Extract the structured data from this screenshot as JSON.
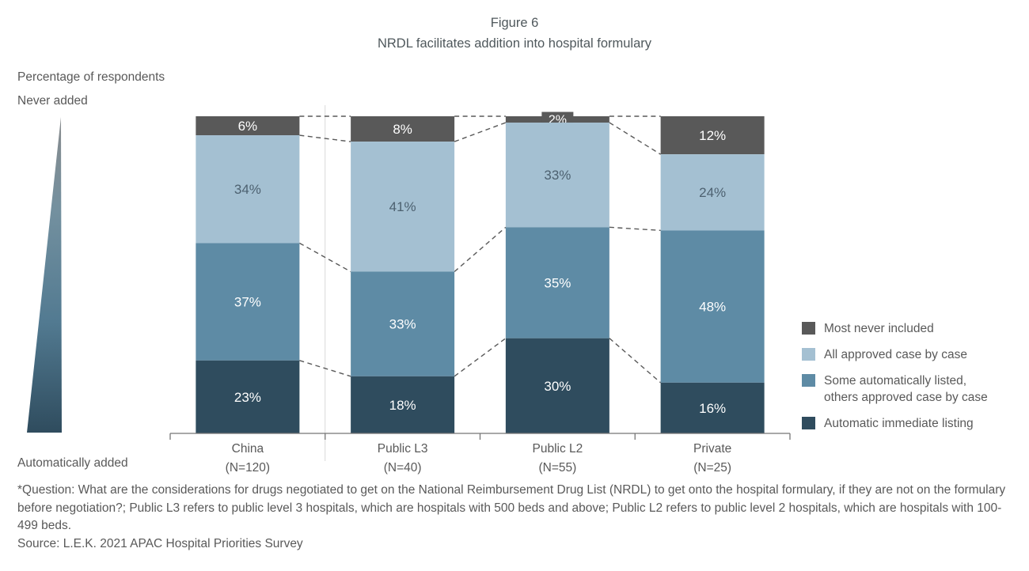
{
  "title": {
    "line1": "Figure 6",
    "line2": "NRDL facilitates addition into hospital formulary"
  },
  "axis_annotations": {
    "y_axis_title": "Percentage of respondents",
    "top_label": "Never added",
    "bottom_label": "Automatically added"
  },
  "chart_data": {
    "type": "bar",
    "stacked": true,
    "ylim": [
      0,
      100
    ],
    "value_suffix": "%",
    "gridlines": false,
    "legend_position": "right",
    "categories": [
      {
        "label": "China",
        "n": "(N=120)"
      },
      {
        "label": "Public L3",
        "n": "(N=40)"
      },
      {
        "label": "Public L2",
        "n": "(N=55)"
      },
      {
        "label": "Private",
        "n": "(N=25)"
      }
    ],
    "series": [
      {
        "name": "Most never included",
        "color": "#595959",
        "label_color": "#ffffff",
        "values": [
          6,
          8,
          2,
          12
        ]
      },
      {
        "name": "All approved case by case",
        "color": "#a4c0d2",
        "label_color": "#4d6170",
        "values": [
          34,
          41,
          33,
          24
        ]
      },
      {
        "name": "Some automatically listed,\nothers approved case by case",
        "color": "#5e8ba5",
        "label_color": "#ffffff",
        "values": [
          37,
          33,
          35,
          48
        ]
      },
      {
        "name": "Automatic immediate listing",
        "color": "#2f4c5e",
        "label_color": "#ffffff",
        "values": [
          23,
          18,
          30,
          16
        ]
      }
    ]
  },
  "colors": {
    "dashed_connector": "#595959",
    "axis": "#767676",
    "divider": "#d9d9d9",
    "category_label": "#595959",
    "wedge_top": "#888b8d",
    "wedge_mid1": "#73909f",
    "wedge_mid2": "#527a91",
    "wedge_bottom": "#2f4c5e"
  },
  "footnote": "*Question: What are the considerations for drugs negotiated to get on the National Reimbursement Drug List (NRDL) to get onto the hospital formulary, if they are not on the formulary before negotiation?; Public L3 refers to public level 3 hospitals, which are hospitals with 500 beds and above; Public L2 refers to public level 2 hospitals, which are hospitals with 100-499 beds.",
  "source": "Source: L.E.K. 2021 APAC Hospital Priorities Survey"
}
